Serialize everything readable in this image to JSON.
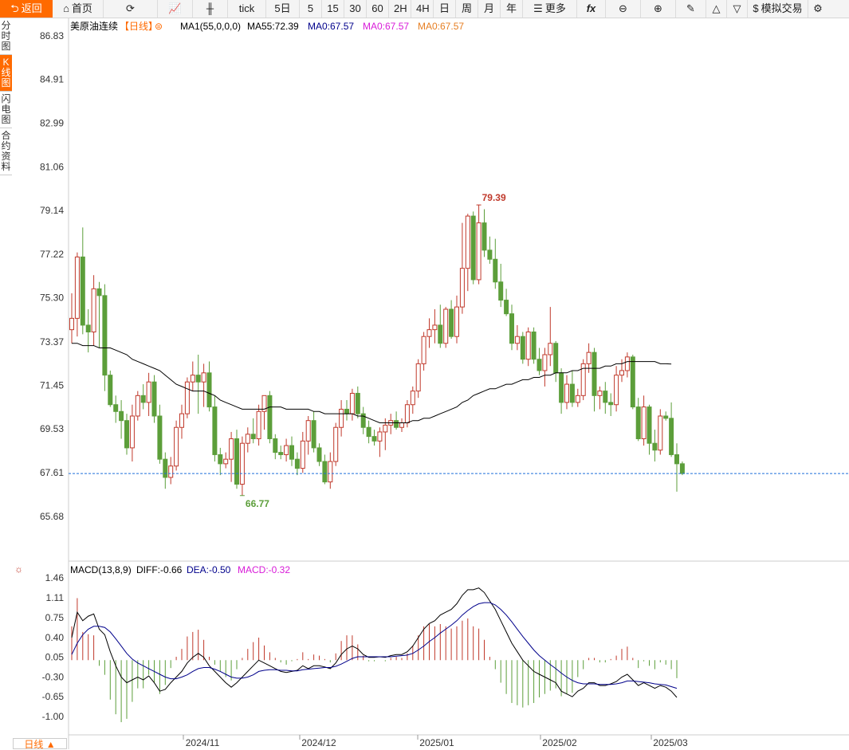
{
  "toolbar": {
    "back": "返回",
    "home": "首页",
    "tick": "tick",
    "periods": [
      "5日",
      "5",
      "15",
      "30",
      "60",
      "2H",
      "4H",
      "日",
      "周",
      "月",
      "年"
    ],
    "more": "更多",
    "fx": "fx",
    "sim": "模拟交易"
  },
  "side_tabs": [
    "分时图",
    "K线图",
    "闪电图",
    "合约资料"
  ],
  "main_header": {
    "name": "美原油连续",
    "period": "【日线】",
    "ma1": "MA1(55,0,0,0)",
    "ma55": "MA55:72.39",
    "ma0a": "MA0:67.57",
    "ma0b": "MA0:67.57",
    "ma0c": "MA0:67.57"
  },
  "macd_header": {
    "name": "MACD(13,8,9)",
    "diff": "DIFF:-0.66",
    "dea": "DEA:-0.50",
    "macd": "MACD:-0.32"
  },
  "day_button": "日线 ▲",
  "colors": {
    "up": "#c0392b",
    "down": "#5c9e3a",
    "ma": "#000000",
    "dea": "#00008b",
    "accent": "#ff6a00",
    "last": "#1e6fd9"
  },
  "chart_data": [
    {
      "type": "candlestick",
      "title": "美原油连续",
      "y_ticks": [
        "86.83",
        "84.91",
        "82.99",
        "81.06",
        "79.14",
        "77.22",
        "75.30",
        "73.37",
        "71.45",
        "69.53",
        "67.61",
        "65.68"
      ],
      "ylim": [
        65.68,
        86.83
      ],
      "x_ticks": [
        "2024/11",
        "2024/12",
        "2025/01",
        "2025/02",
        "2025/03"
      ],
      "high_label": "79.39",
      "low_label": "66.77",
      "last_price": 67.57,
      "ohlc": [
        [
          73.9,
          75.5,
          73.3,
          74.4
        ],
        [
          74.4,
          77.3,
          73.6,
          77.1
        ],
        [
          77.1,
          78.4,
          73.7,
          74.1
        ],
        [
          74.1,
          74.8,
          72.9,
          73.8
        ],
        [
          73.8,
          76.3,
          73.2,
          75.7
        ],
        [
          75.7,
          76.0,
          73.1,
          75.4
        ],
        [
          75.4,
          75.9,
          71.2,
          71.9
        ],
        [
          71.9,
          72.1,
          70.5,
          70.6
        ],
        [
          70.6,
          71.0,
          69.8,
          70.3
        ],
        [
          70.3,
          70.8,
          69.1,
          69.9
        ],
        [
          69.9,
          70.2,
          68.4,
          68.7
        ],
        [
          68.7,
          70.6,
          68.1,
          70.1
        ],
        [
          70.1,
          71.2,
          69.9,
          71.0
        ],
        [
          71.0,
          71.5,
          70.4,
          70.7
        ],
        [
          70.7,
          72.0,
          70.1,
          71.6
        ],
        [
          71.6,
          71.9,
          69.8,
          70.1
        ],
        [
          70.1,
          70.6,
          68.0,
          68.2
        ],
        [
          68.2,
          68.5,
          66.9,
          67.4
        ],
        [
          67.4,
          68.3,
          67.1,
          67.9
        ],
        [
          67.9,
          69.9,
          67.7,
          69.6
        ],
        [
          69.6,
          70.6,
          69.1,
          70.2
        ],
        [
          70.2,
          71.8,
          70.0,
          71.6
        ],
        [
          71.6,
          72.5,
          71.2,
          71.9
        ],
        [
          71.9,
          72.8,
          70.2,
          71.6
        ],
        [
          71.6,
          72.4,
          70.5,
          72.0
        ],
        [
          72.0,
          72.5,
          70.3,
          70.5
        ],
        [
          70.5,
          71.0,
          68.1,
          68.4
        ],
        [
          68.4,
          68.7,
          67.5,
          68.0
        ],
        [
          68.0,
          68.5,
          67.8,
          68.2
        ],
        [
          68.2,
          69.4,
          67.2,
          69.1
        ],
        [
          69.1,
          69.5,
          66.9,
          67.1
        ],
        [
          67.1,
          69.2,
          66.6,
          68.9
        ],
        [
          68.9,
          69.6,
          68.5,
          69.3
        ],
        [
          69.3,
          70.0,
          68.9,
          69.1
        ],
        [
          69.1,
          70.6,
          68.8,
          70.3
        ],
        [
          70.3,
          71.0,
          69.5,
          71.0
        ],
        [
          71.0,
          71.2,
          68.9,
          69.1
        ],
        [
          69.1,
          69.3,
          68.2,
          68.5
        ],
        [
          68.5,
          68.8,
          68.2,
          68.4
        ],
        [
          68.4,
          69.1,
          68.1,
          68.8
        ],
        [
          68.8,
          69.2,
          67.9,
          68.2
        ],
        [
          68.2,
          68.5,
          67.5,
          67.8
        ],
        [
          67.8,
          69.4,
          67.6,
          69.0
        ],
        [
          69.0,
          70.1,
          68.4,
          69.9
        ],
        [
          69.9,
          70.3,
          68.5,
          68.7
        ],
        [
          68.7,
          68.9,
          67.9,
          68.1
        ],
        [
          68.1,
          68.4,
          67.1,
          67.2
        ],
        [
          67.2,
          68.5,
          66.9,
          68.1
        ],
        [
          68.1,
          69.8,
          67.9,
          69.6
        ],
        [
          69.6,
          70.8,
          69.2,
          70.4
        ],
        [
          70.4,
          70.8,
          69.9,
          70.2
        ],
        [
          70.2,
          71.3,
          69.9,
          71.1
        ],
        [
          71.1,
          71.4,
          70.0,
          70.2
        ],
        [
          70.2,
          70.5,
          69.3,
          69.6
        ],
        [
          69.6,
          69.9,
          68.9,
          69.2
        ],
        [
          69.2,
          69.5,
          68.8,
          69.0
        ],
        [
          69.0,
          69.6,
          68.3,
          69.4
        ],
        [
          69.4,
          70.0,
          68.6,
          69.7
        ],
        [
          69.7,
          70.2,
          69.3,
          69.9
        ],
        [
          69.9,
          70.3,
          69.5,
          69.6
        ],
        [
          69.6,
          70.0,
          69.4,
          69.8
        ],
        [
          69.8,
          70.8,
          69.6,
          70.6
        ],
        [
          70.6,
          71.4,
          70.2,
          71.2
        ],
        [
          71.2,
          72.6,
          70.9,
          72.4
        ],
        [
          72.4,
          73.8,
          72.1,
          73.6
        ],
        [
          73.6,
          74.4,
          73.1,
          73.9
        ],
        [
          73.9,
          74.8,
          73.3,
          74.1
        ],
        [
          74.1,
          75.0,
          73.1,
          73.3
        ],
        [
          73.3,
          74.9,
          73.1,
          74.8
        ],
        [
          74.8,
          75.2,
          73.5,
          73.6
        ],
        [
          73.6,
          75.4,
          73.3,
          74.9
        ],
        [
          74.9,
          78.6,
          74.6,
          76.6
        ],
        [
          76.6,
          79.0,
          75.6,
          78.9
        ],
        [
          78.9,
          79.1,
          75.9,
          76.1
        ],
        [
          76.1,
          79.39,
          75.9,
          78.6
        ],
        [
          78.6,
          79.2,
          77.1,
          77.4
        ],
        [
          77.4,
          78.0,
          76.8,
          77.0
        ],
        [
          77.0,
          77.9,
          75.7,
          76.0
        ],
        [
          76.0,
          76.8,
          74.9,
          75.2
        ],
        [
          75.2,
          75.7,
          74.5,
          74.6
        ],
        [
          74.6,
          75.0,
          73.0,
          73.3
        ],
        [
          73.3,
          74.1,
          73.0,
          73.6
        ],
        [
          73.6,
          73.8,
          72.4,
          72.6
        ],
        [
          72.6,
          74.0,
          72.3,
          73.8
        ],
        [
          73.8,
          74.0,
          72.4,
          72.6
        ],
        [
          72.6,
          73.1,
          71.9,
          72.1
        ],
        [
          72.1,
          73.1,
          71.4,
          72.8
        ],
        [
          72.8,
          74.9,
          72.3,
          73.3
        ],
        [
          73.3,
          73.4,
          71.6,
          72.0
        ],
        [
          72.0,
          72.2,
          70.2,
          70.7
        ],
        [
          70.7,
          71.9,
          70.4,
          71.5
        ],
        [
          71.5,
          72.1,
          70.5,
          70.7
        ],
        [
          70.7,
          71.3,
          70.5,
          71.0
        ],
        [
          71.0,
          72.6,
          70.8,
          72.4
        ],
        [
          72.4,
          73.3,
          72.0,
          72.9
        ],
        [
          72.9,
          73.1,
          70.3,
          71.0
        ],
        [
          71.0,
          71.4,
          70.4,
          71.2
        ],
        [
          71.2,
          71.6,
          70.2,
          70.7
        ],
        [
          70.7,
          71.1,
          70.1,
          70.6
        ],
        [
          70.6,
          72.3,
          70.3,
          71.9
        ],
        [
          71.9,
          72.6,
          71.6,
          72.1
        ],
        [
          72.1,
          72.9,
          71.8,
          72.7
        ],
        [
          72.7,
          72.8,
          70.4,
          70.5
        ],
        [
          70.5,
          70.9,
          69.0,
          69.1
        ],
        [
          69.1,
          71.0,
          68.8,
          70.5
        ],
        [
          70.5,
          70.6,
          68.4,
          68.9
        ],
        [
          68.9,
          69.5,
          68.1,
          68.6
        ],
        [
          68.6,
          70.4,
          68.4,
          70.1
        ],
        [
          70.1,
          70.3,
          69.9,
          70.0
        ],
        [
          70.0,
          70.7,
          68.3,
          68.4
        ],
        [
          68.4,
          68.9,
          66.77,
          68.0
        ],
        [
          68.0,
          68.1,
          67.5,
          67.57
        ]
      ],
      "ma55": [
        73.3,
        73.3,
        73.2,
        73.2,
        73.2,
        73.1,
        73.1,
        73.1,
        73.0,
        72.9,
        72.8,
        72.6,
        72.5,
        72.4,
        72.3,
        72.2,
        72.1,
        71.9,
        71.7,
        71.5,
        71.4,
        71.3,
        71.2,
        71.2,
        71.2,
        71.1,
        71.0,
        70.8,
        70.7,
        70.6,
        70.5,
        70.4,
        70.4,
        70.4,
        70.4,
        70.4,
        70.5,
        70.5,
        70.5,
        70.4,
        70.4,
        70.4,
        70.4,
        70.4,
        70.3,
        70.3,
        70.2,
        70.2,
        70.2,
        70.2,
        70.2,
        70.2,
        70.1,
        70.1,
        70.0,
        69.9,
        69.8,
        69.8,
        69.8,
        69.8,
        69.8,
        69.8,
        69.9,
        69.9,
        70.0,
        70.0,
        70.1,
        70.2,
        70.3,
        70.4,
        70.5,
        70.7,
        70.8,
        71.0,
        71.1,
        71.2,
        71.3,
        71.3,
        71.4,
        71.5,
        71.5,
        71.6,
        71.7,
        71.7,
        71.8,
        71.8,
        71.9,
        71.9,
        72.0,
        72.0,
        72.0,
        72.1,
        72.1,
        72.2,
        72.2,
        72.2,
        72.2,
        72.3,
        72.3,
        72.4,
        72.4,
        72.5,
        72.5,
        72.5,
        72.5,
        72.5,
        72.5,
        72.4,
        72.4,
        72.39
      ]
    },
    {
      "type": "line",
      "title": "MACD(13,8,9)",
      "y_ticks": [
        "1.46",
        "1.11",
        "0.75",
        "0.40",
        "0.05",
        "-0.30",
        "-0.65",
        "-1.00"
      ],
      "ylim": [
        -1.0,
        1.46
      ],
      "series": [
        {
          "name": "DIFF",
          "values": [
            0.4,
            0.85,
            0.7,
            0.78,
            0.82,
            0.55,
            0.45,
            0.15,
            -0.1,
            -0.3,
            -0.4,
            -0.35,
            -0.3,
            -0.35,
            -0.28,
            -0.4,
            -0.55,
            -0.52,
            -0.4,
            -0.3,
            -0.2,
            -0.05,
            0.05,
            0.12,
            0.05,
            -0.1,
            -0.2,
            -0.3,
            -0.4,
            -0.48,
            -0.4,
            -0.3,
            -0.2,
            -0.1,
            0.0,
            -0.05,
            -0.1,
            -0.15,
            -0.2,
            -0.22,
            -0.2,
            -0.18,
            -0.1,
            -0.15,
            -0.1,
            -0.1,
            -0.12,
            -0.15,
            -0.05,
            0.1,
            0.2,
            0.25,
            0.2,
            0.1,
            0.05,
            0.05,
            0.06,
            0.05,
            0.08,
            0.1,
            0.1,
            0.15,
            0.25,
            0.4,
            0.55,
            0.65,
            0.7,
            0.8,
            0.85,
            0.9,
            1.0,
            1.15,
            1.25,
            1.25,
            1.28,
            1.2,
            1.05,
            0.9,
            0.7,
            0.5,
            0.3,
            0.15,
            0.0,
            -0.1,
            -0.2,
            -0.25,
            -0.3,
            -0.35,
            -0.4,
            -0.55,
            -0.6,
            -0.65,
            -0.55,
            -0.5,
            -0.4,
            -0.4,
            -0.45,
            -0.45,
            -0.42,
            -0.38,
            -0.3,
            -0.25,
            -0.35,
            -0.45,
            -0.4,
            -0.45,
            -0.5,
            -0.45,
            -0.48,
            -0.55,
            -0.66
          ]
        },
        {
          "name": "DEA",
          "values": [
            0.1,
            0.3,
            0.45,
            0.55,
            0.6,
            0.6,
            0.58,
            0.5,
            0.38,
            0.25,
            0.12,
            0.02,
            -0.05,
            -0.1,
            -0.15,
            -0.2,
            -0.25,
            -0.3,
            -0.33,
            -0.33,
            -0.3,
            -0.26,
            -0.2,
            -0.15,
            -0.13,
            -0.13,
            -0.16,
            -0.2,
            -0.25,
            -0.3,
            -0.32,
            -0.32,
            -0.3,
            -0.26,
            -0.2,
            -0.18,
            -0.17,
            -0.17,
            -0.18,
            -0.18,
            -0.19,
            -0.19,
            -0.17,
            -0.16,
            -0.15,
            -0.14,
            -0.13,
            -0.13,
            -0.11,
            -0.07,
            -0.02,
            0.03,
            0.06,
            0.06,
            0.06,
            0.06,
            0.06,
            0.06,
            0.06,
            0.07,
            0.08,
            0.09,
            0.12,
            0.18,
            0.25,
            0.33,
            0.4,
            0.48,
            0.55,
            0.62,
            0.7,
            0.8,
            0.88,
            0.95,
            1.0,
            1.02,
            1.02,
            0.98,
            0.9,
            0.8,
            0.68,
            0.55,
            0.42,
            0.3,
            0.18,
            0.08,
            0.0,
            -0.08,
            -0.15,
            -0.23,
            -0.3,
            -0.36,
            -0.4,
            -0.42,
            -0.42,
            -0.42,
            -0.43,
            -0.43,
            -0.43,
            -0.42,
            -0.4,
            -0.37,
            -0.37,
            -0.38,
            -0.39,
            -0.4,
            -0.42,
            -0.43,
            -0.44,
            -0.47,
            -0.5
          ]
        },
        {
          "name": "MACD",
          "values": [
            0.6,
            1.1,
            0.5,
            0.46,
            0.44,
            -0.1,
            -0.26,
            -0.7,
            -0.96,
            -1.1,
            -1.04,
            -0.74,
            -0.5,
            -0.5,
            -0.26,
            -0.4,
            -0.6,
            -0.44,
            -0.14,
            0.06,
            0.2,
            0.42,
            0.5,
            0.54,
            0.36,
            0.06,
            -0.08,
            -0.2,
            -0.3,
            -0.36,
            -0.16,
            0.04,
            0.2,
            0.32,
            0.4,
            0.26,
            0.14,
            0.04,
            -0.04,
            -0.08,
            -0.02,
            0.02,
            0.14,
            0.02,
            0.1,
            0.08,
            0.02,
            -0.04,
            0.12,
            0.34,
            0.44,
            0.44,
            0.28,
            0.08,
            -0.02,
            -0.02,
            0.0,
            -0.02,
            0.04,
            0.06,
            0.04,
            0.12,
            0.26,
            0.44,
            0.6,
            0.64,
            0.6,
            0.64,
            0.6,
            0.56,
            0.6,
            0.7,
            0.74,
            0.6,
            0.56,
            0.36,
            0.06,
            -0.16,
            -0.4,
            -0.6,
            -0.76,
            -0.8,
            -0.84,
            -0.8,
            -0.76,
            -0.66,
            -0.6,
            -0.54,
            -0.5,
            -0.64,
            -0.6,
            -0.58,
            -0.3,
            -0.16,
            0.04,
            0.04,
            -0.04,
            -0.04,
            0.02,
            0.08,
            0.2,
            0.24,
            0.04,
            -0.14,
            -0.02,
            -0.1,
            -0.16,
            -0.04,
            -0.08,
            -0.16,
            -0.32
          ]
        }
      ]
    }
  ]
}
